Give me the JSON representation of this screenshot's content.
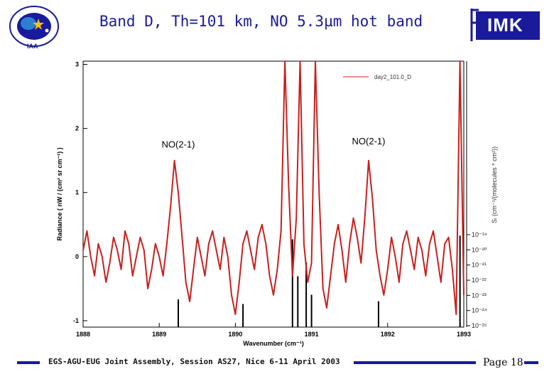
{
  "header": {
    "title": "Band D, Th=101 km, NO 5.3µm hot band",
    "logo_left_text": "IAA",
    "logo_right_text": "IMK",
    "logo_right_letter": "F"
  },
  "footer": {
    "text": "EGS-AGU-EUG Joint Assembly, Session AS27, Nice 6-11 April 2003",
    "page": "Page 18"
  },
  "colors": {
    "title": "#1a1a9c",
    "accent_bar": "#1a1a9c",
    "series": "#c8201e",
    "sticks": "#000000"
  },
  "chart_data": {
    "type": "line",
    "xlabel": "Wavenumber (cm⁻¹)",
    "ylabel": "Radiance ( nW / (cm² sr cm⁻¹) )",
    "y2label": "Sᵢ (cm⁻¹/(molecules * cm²))",
    "xlim": [
      1888,
      1893
    ],
    "ylim": [
      -1.1,
      3.05
    ],
    "xticks": [
      "1888",
      "1889",
      "1890",
      "1891",
      "1892",
      "1893"
    ],
    "yticks": [
      "-1",
      "0",
      "1",
      "2",
      "3"
    ],
    "y2ticks": [
      "10⁻¹⁹",
      "10⁻²⁰",
      "10⁻²¹",
      "10⁻²²",
      "10⁻²³",
      "10⁻²⁴",
      "10⁻²⁵"
    ],
    "legend": {
      "position": "top-right",
      "entries": [
        "day2_101.0_D"
      ]
    },
    "annotations": [
      {
        "text": "NO(2-1)",
        "x": 1889.25,
        "y": 1.7
      },
      {
        "text": "NO(2-1)",
        "x": 1891.75,
        "y": 1.75
      }
    ],
    "series": [
      {
        "name": "day2_101.0_D",
        "x": [
          1888.0,
          1888.05,
          1888.1,
          1888.15,
          1888.2,
          1888.25,
          1888.3,
          1888.35,
          1888.4,
          1888.45,
          1888.5,
          1888.55,
          1888.6,
          1888.65,
          1888.7,
          1888.75,
          1888.8,
          1888.85,
          1888.9,
          1888.95,
          1889.0,
          1889.05,
          1889.1,
          1889.15,
          1889.2,
          1889.25,
          1889.3,
          1889.35,
          1889.4,
          1889.45,
          1889.5,
          1889.55,
          1889.6,
          1889.65,
          1889.7,
          1889.75,
          1889.8,
          1889.85,
          1889.9,
          1889.95,
          1890.0,
          1890.05,
          1890.1,
          1890.15,
          1890.2,
          1890.25,
          1890.3,
          1890.35,
          1890.4,
          1890.45,
          1890.5,
          1890.55,
          1890.6,
          1890.65,
          1890.7,
          1890.75,
          1890.8,
          1890.85,
          1890.9,
          1890.95,
          1891.0,
          1891.05,
          1891.1,
          1891.15,
          1891.2,
          1891.25,
          1891.3,
          1891.35,
          1891.4,
          1891.45,
          1891.5,
          1891.55,
          1891.6,
          1891.65,
          1891.7,
          1891.75,
          1891.8,
          1891.85,
          1891.9,
          1891.95,
          1892.0,
          1892.05,
          1892.1,
          1892.15,
          1892.2,
          1892.25,
          1892.3,
          1892.35,
          1892.4,
          1892.45,
          1892.5,
          1892.55,
          1892.6,
          1892.65,
          1892.7,
          1892.75,
          1892.8,
          1892.85,
          1892.9,
          1892.95,
          1893.0
        ],
        "y": [
          0.1,
          0.4,
          0.0,
          -0.3,
          0.2,
          0.0,
          -0.4,
          -0.1,
          0.3,
          0.1,
          -0.2,
          0.4,
          0.2,
          -0.3,
          0.0,
          0.3,
          0.1,
          -0.5,
          -0.2,
          0.2,
          0.0,
          -0.3,
          0.2,
          0.8,
          1.5,
          1.0,
          0.3,
          -0.4,
          -0.7,
          -0.2,
          0.3,
          0.0,
          -0.3,
          0.2,
          0.4,
          0.1,
          -0.2,
          0.3,
          0.0,
          -0.6,
          -0.9,
          -0.4,
          0.2,
          0.4,
          0.1,
          -0.2,
          0.3,
          0.5,
          0.2,
          -0.3,
          -0.6,
          -0.2,
          0.4,
          3.2,
          1.1,
          -0.3,
          0.6,
          3.2,
          0.2,
          -0.4,
          -0.1,
          3.2,
          1.0,
          -0.5,
          -0.8,
          -0.3,
          0.2,
          0.5,
          0.1,
          -0.4,
          0.2,
          0.6,
          0.3,
          -0.1,
          0.6,
          1.5,
          0.9,
          0.1,
          -0.3,
          -0.6,
          -0.2,
          0.3,
          0.0,
          -0.4,
          0.2,
          0.4,
          0.1,
          -0.2,
          0.3,
          0.1,
          -0.3,
          0.2,
          0.4,
          0.0,
          -0.4,
          0.2,
          0.3,
          -0.2,
          -0.9,
          3.2,
          -0.6
        ]
      }
    ],
    "sticks": {
      "x": [
        1889.25,
        1890.1,
        1890.75,
        1890.82,
        1890.93,
        1891.0,
        1891.88,
        1892.95
      ],
      "strength": [
        0.3,
        0.25,
        0.95,
        0.55,
        0.7,
        0.35,
        0.28,
        0.99
      ]
    }
  }
}
